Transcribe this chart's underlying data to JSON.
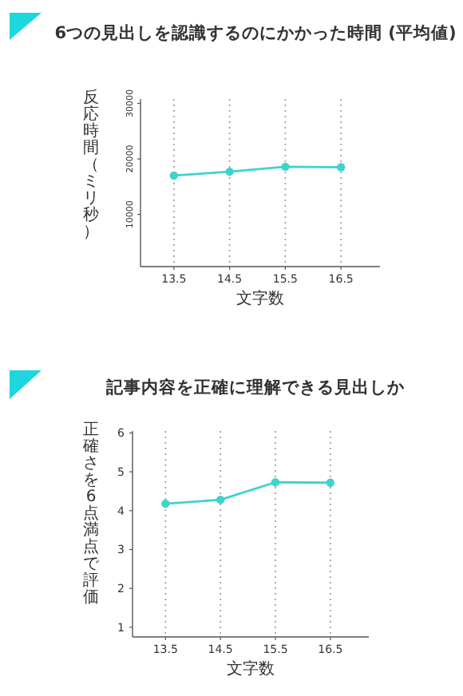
{
  "chart_data": [
    {
      "type": "line",
      "title": "6つの見出しを認識するのにかかった時間 (平均値)",
      "xlabel": "文字数",
      "ylabel": "反応時間（ミリ秒）",
      "x": [
        13.5,
        14.5,
        15.5,
        16.5
      ],
      "xlim": [
        12.9,
        17.2
      ],
      "xticks": [
        13.5,
        14.5,
        15.5,
        16.5
      ],
      "ylim": [
        600,
        30800
      ],
      "yticks": [
        10000,
        20000,
        30000
      ],
      "grid": "x",
      "marker": "circle",
      "series": [
        {
          "color": "#3fd3cc",
          "values": [
            17000,
            17700,
            18600,
            18500
          ]
        }
      ]
    },
    {
      "type": "line",
      "title": "記事内容を正確に理解できる見出しか",
      "xlabel": "文字数",
      "ylabel": "正確さを6点満点で評価",
      "x": [
        13.5,
        14.5,
        15.5,
        16.5
      ],
      "xlim": [
        12.9,
        17.2
      ],
      "xticks": [
        13.5,
        14.5,
        15.5,
        16.5
      ],
      "ylim": [
        0.75,
        6.05
      ],
      "yticks": [
        1,
        2,
        3,
        4,
        5,
        6
      ],
      "grid": "x",
      "marker": "circle",
      "series": [
        {
          "color": "#3fd3cc",
          "values": [
            4.18,
            4.28,
            4.73,
            4.72
          ]
        }
      ]
    }
  ]
}
